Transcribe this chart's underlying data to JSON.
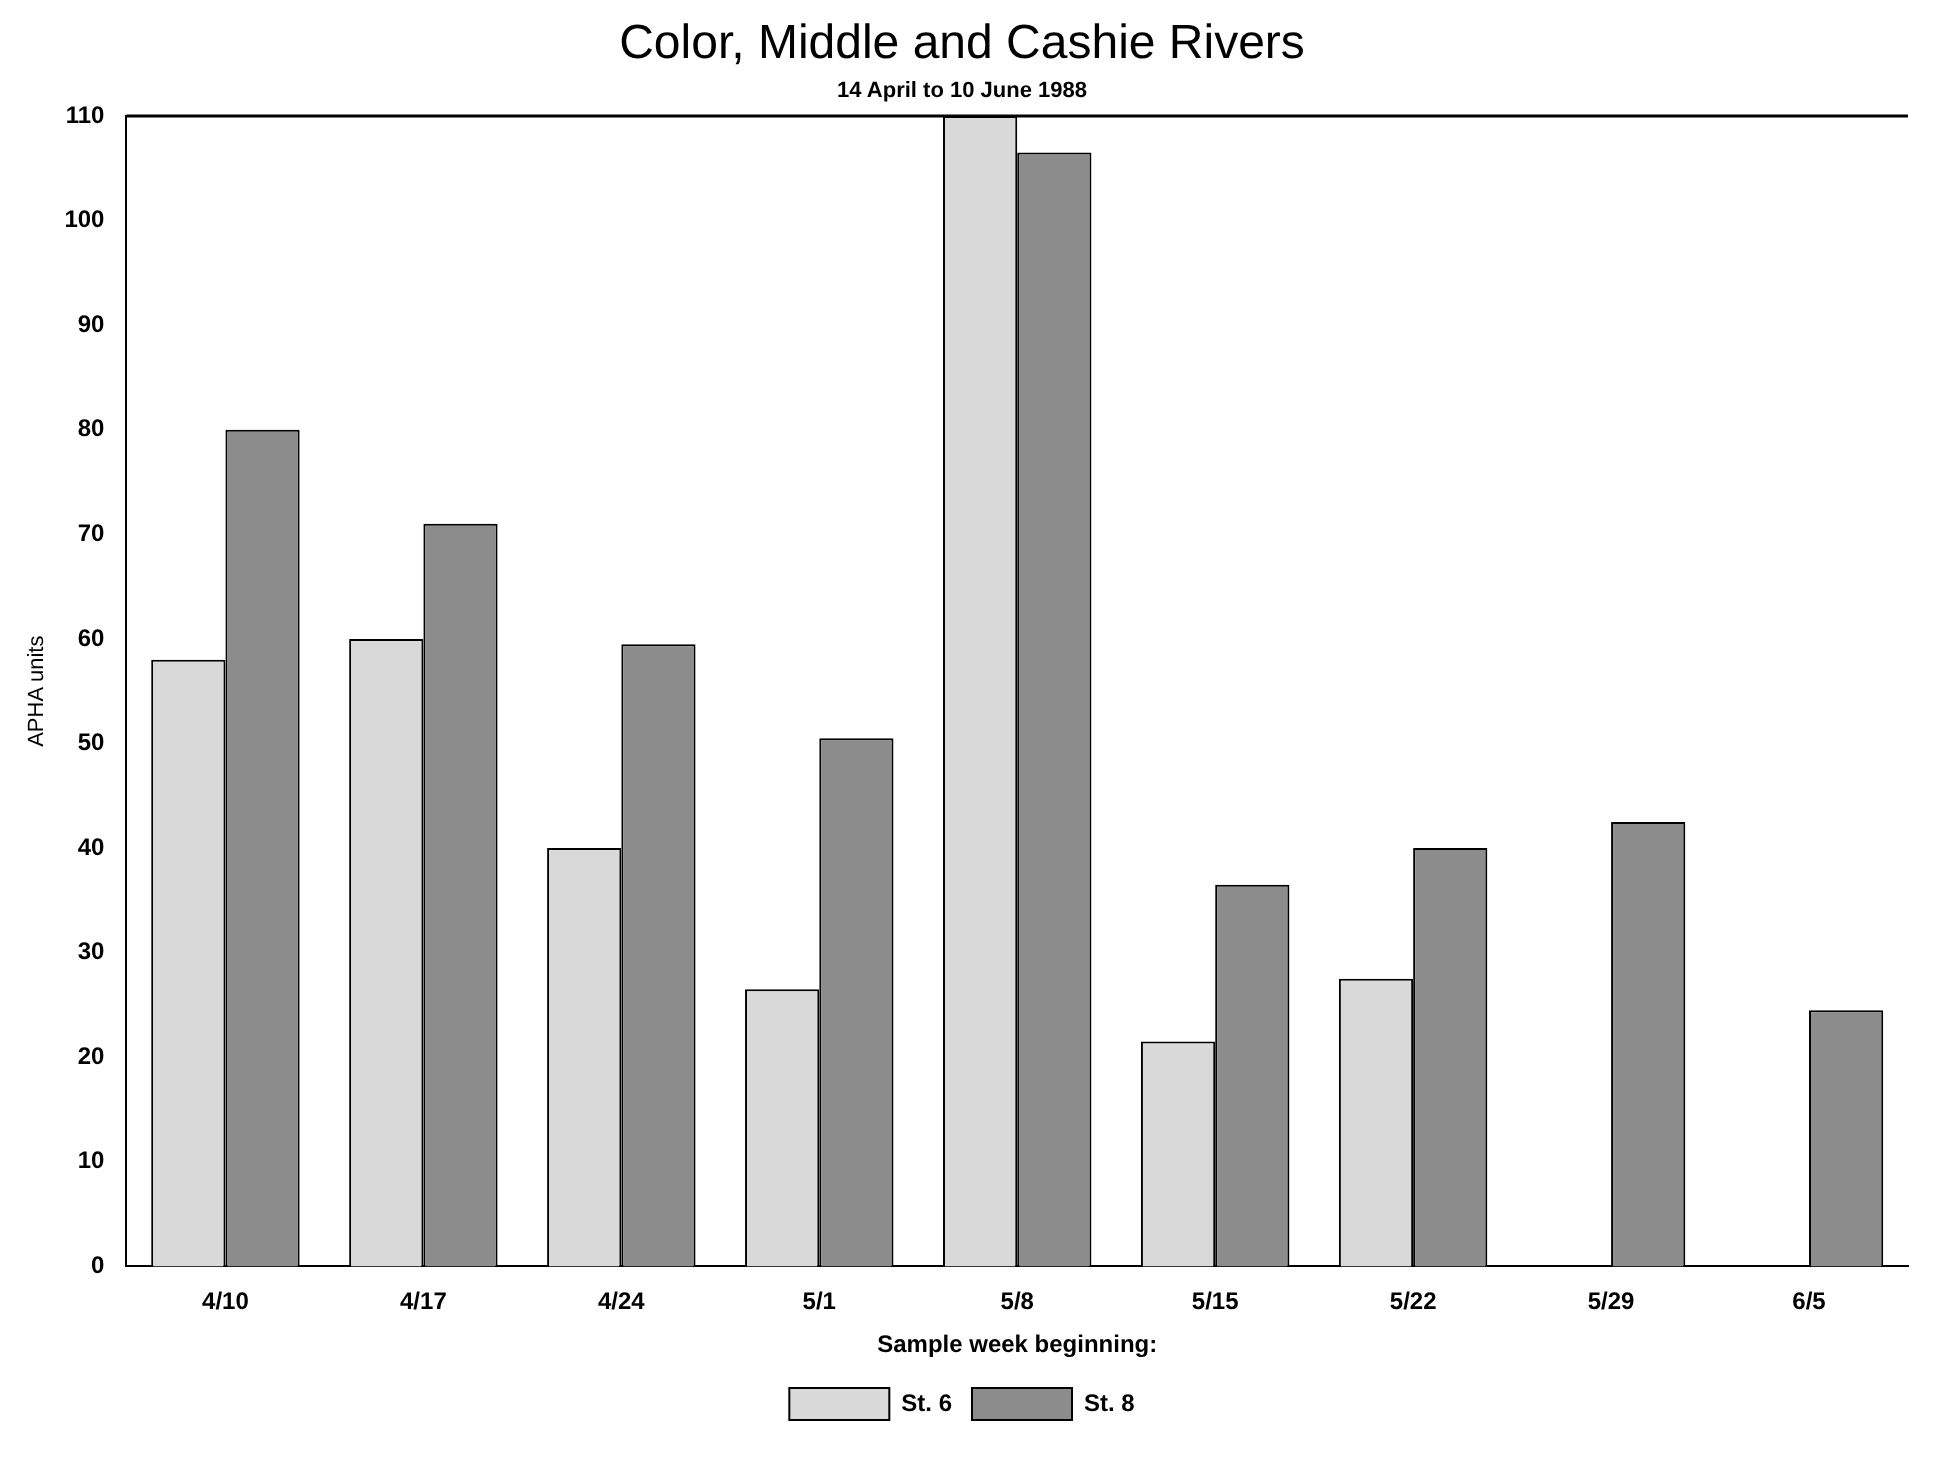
{
  "chart_data": {
    "type": "bar",
    "title": "Color, Middle and Cashie Rivers",
    "subtitle": "14 April to 10 June 1988",
    "xlabel": "Sample week beginning:",
    "ylabel": "APHA units",
    "categories": [
      "4/10",
      "4/17",
      "4/24",
      "5/1",
      "5/8",
      "5/15",
      "5/22",
      "5/29",
      "6/5"
    ],
    "series": [
      {
        "name": "St. 6",
        "color": "#d9d9d9",
        "values": [
          58,
          60,
          40,
          26.5,
          110,
          21.5,
          27.5,
          null,
          null
        ]
      },
      {
        "name": "St. 8",
        "color": "#8c8c8c",
        "values": [
          80,
          71,
          59.5,
          50.5,
          106.5,
          36.5,
          40,
          42.5,
          24.5
        ]
      }
    ],
    "ylim": [
      0,
      110
    ],
    "yticks": [
      0,
      10,
      20,
      30,
      40,
      50,
      60,
      70,
      80,
      90,
      100,
      110
    ],
    "grid": false,
    "legend": "bottom"
  }
}
